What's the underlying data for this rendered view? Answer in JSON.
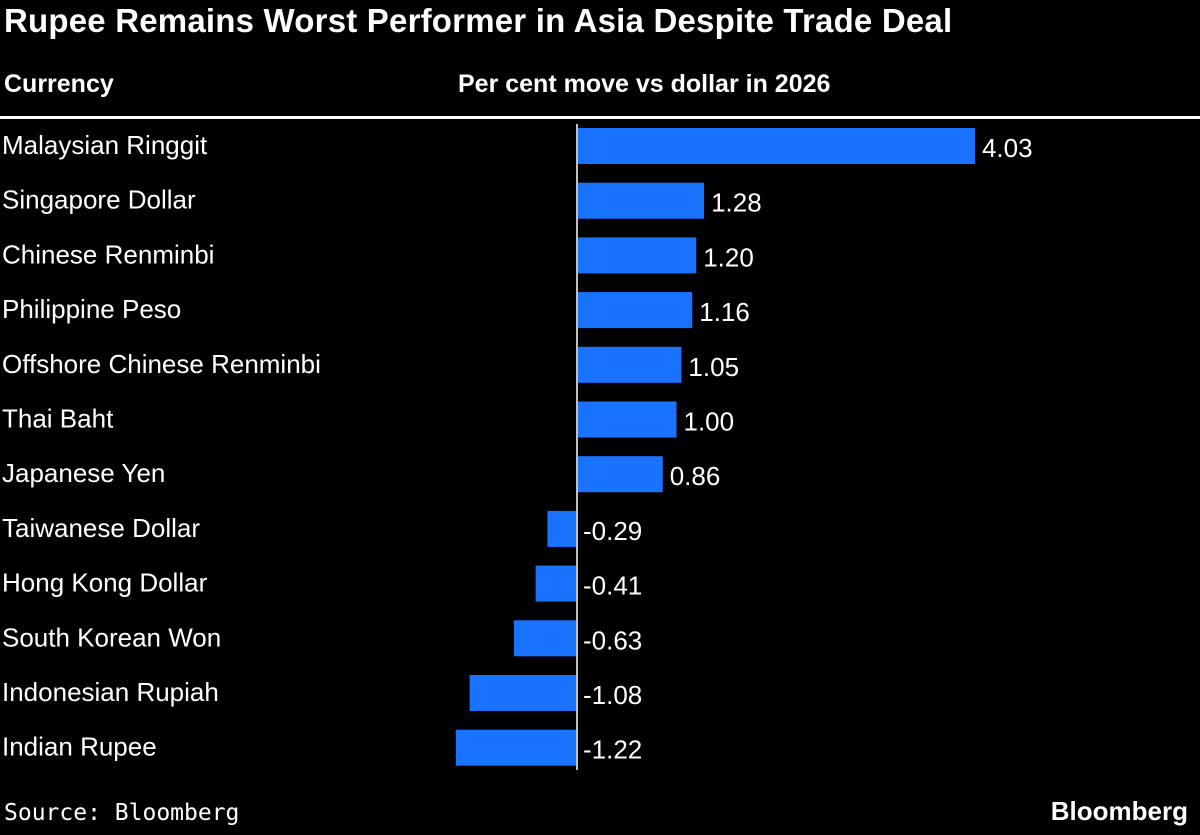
{
  "chart_data": {
    "type": "bar",
    "orientation": "horizontal",
    "title": "Rupee Remains Worst Performer in Asia Despite Trade Deal",
    "category_header": "Currency",
    "value_header": "Per cent move vs dollar in 2026",
    "categories": [
      "Malaysian Ringgit",
      "Singapore Dollar",
      "Chinese Renminbi",
      "Philippine Peso",
      "Offshore Chinese Renminbi",
      "Thai Baht",
      "Japanese Yen",
      "Taiwanese Dollar",
      "Hong Kong Dollar",
      "South Korean Won",
      "Indonesian Rupiah",
      "Indian Rupee"
    ],
    "values": [
      4.03,
      1.28,
      1.2,
      1.16,
      1.05,
      1.0,
      0.86,
      -0.29,
      -0.41,
      -0.63,
      -1.08,
      -1.22
    ],
    "value_labels": [
      "4.03",
      "1.28",
      "1.20",
      "1.16",
      "1.05",
      "1.00",
      "0.86",
      "-0.29",
      "-0.41",
      "-0.63",
      "-1.08",
      "-1.22"
    ],
    "xlim": [
      -1.22,
      4.03
    ],
    "bar_color": "#1A73FF",
    "background_color": "#000000",
    "text_color": "#FFFFFF"
  },
  "footer": {
    "source": "Source: Bloomberg",
    "brand": "Bloomberg"
  }
}
